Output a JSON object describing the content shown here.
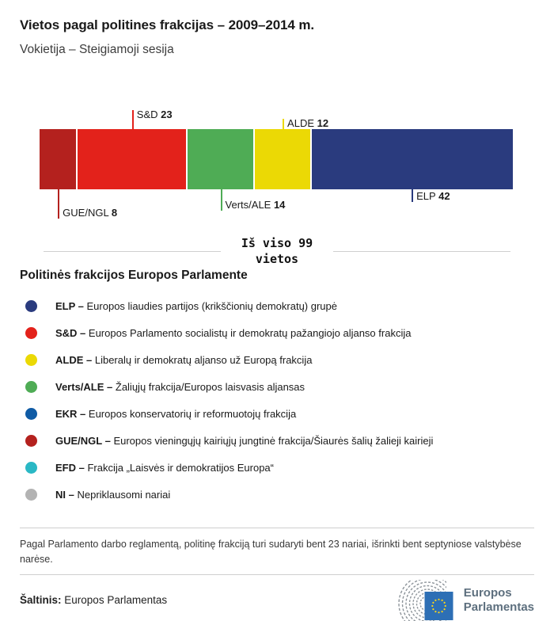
{
  "header": {
    "title": "Vietos pagal politines frakcijas – 2009–2014 m.",
    "subtitle": "Vokietija – Steigiamoji sesija"
  },
  "chart_data": {
    "type": "bar",
    "variant": "single-horizontal-stacked",
    "title": "Vietos pagal politines frakcijas – 2009–2014 m.",
    "subtitle": "Vokietija – Steigiamoji sesija",
    "total": 99,
    "total_label_line1": "Iš viso 99",
    "total_label_line2": "vietos",
    "segments": [
      {
        "label": "GUE/NGL",
        "value": 8,
        "color": "#b4211e",
        "callout": "below",
        "tick_len": 37
      },
      {
        "label": "S&D",
        "value": 23,
        "color": "#e3221b",
        "callout": "above",
        "tick_len": 24
      },
      {
        "label": "Verts/ALE",
        "value": 14,
        "color": "#4fac55",
        "callout": "below",
        "tick_len": 27
      },
      {
        "label": "ALDE",
        "value": 12,
        "color": "#ebd905",
        "callout": "above",
        "tick_len": 13
      },
      {
        "label": "ELP",
        "value": 42,
        "color": "#2a3b7e",
        "callout": "below",
        "tick_len": 16
      }
    ]
  },
  "legend": {
    "heading": "Politinės frakcijos Europos Parlamente",
    "items": [
      {
        "abbr": "ELP –",
        "desc": "Europos liaudies partijos (krikščionių demokratų) grupė",
        "color": "#2a3b7e"
      },
      {
        "abbr": "S&D –",
        "desc": "Europos Parlamento socialistų ir demokratų pažangiojo aljanso frakcija",
        "color": "#e3221b"
      },
      {
        "abbr": "ALDE –",
        "desc": "Liberalų ir demokratų aljanso už Europą frakcija",
        "color": "#ebd905"
      },
      {
        "abbr": "Verts/ALE –",
        "desc": "Žaliųjų frakcija/Europos laisvasis aljansas",
        "color": "#4fac55"
      },
      {
        "abbr": "EKR –",
        "desc": "Europos konservatorių ir reformuotojų frakcija",
        "color": "#0f5ba5"
      },
      {
        "abbr": "GUE/NGL –",
        "desc": "Europos vieningųjų kairiųjų jungtinė frakcija/Šiaurės šalių žalieji kairieji",
        "color": "#b4211e"
      },
      {
        "abbr": "EFD –",
        "desc": "Frakcija „Laisvės ir demokratijos Europa“",
        "color": "#2ab8c5"
      },
      {
        "abbr": "NI –",
        "desc": "Nepriklausomi nariai",
        "color": "#b3b3b3"
      }
    ]
  },
  "footnote": "Pagal Parlamento darbo reglamentą, politinę frakciją turi sudaryti bent 23 nariai, išrinkti bent septyniose valstybėse narėse.",
  "source": {
    "label": "Šaltinis:",
    "value": "Europos Parlamentas",
    "logo_line1": "Europos",
    "logo_line2": "Parlamentas"
  }
}
